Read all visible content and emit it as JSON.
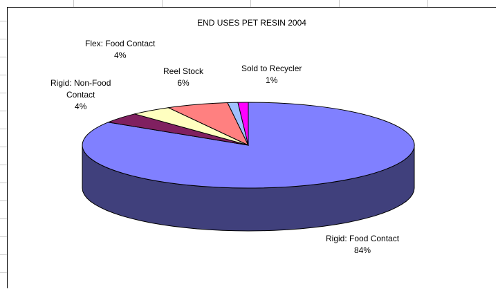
{
  "chart_data": {
    "type": "pie",
    "title": "END USES PET RESIN 2004",
    "slices": [
      {
        "label": "Rigid: Food Contact",
        "value": 84,
        "pct_text": "84%",
        "color": "#8080ff",
        "side_color": "#40407c"
      },
      {
        "label": "Rigid: Non-Food Contact",
        "label_lines": [
          "Rigid: Non-Food",
          "Contact"
        ],
        "value": 4,
        "pct_text": "4%",
        "color": "#802060",
        "side_color": "#401030"
      },
      {
        "label": "Flex:  Food Contact",
        "value": 4,
        "pct_text": "4%",
        "color": "#ffffc0",
        "side_color": "#80805e"
      },
      {
        "label": "Reel Stock",
        "value": 6,
        "pct_text": "6%",
        "color": "#ff8080",
        "side_color": "#804040"
      },
      {
        "label": "Sold to Recycler",
        "value": 1,
        "pct_text": "1%",
        "color": "#a0c0ff",
        "side_color": "#50607f"
      },
      {
        "label": "",
        "value": 1,
        "pct_text": "",
        "color": "#ff00ff",
        "side_color": "#800080"
      }
    ],
    "legend": "none",
    "style": "3d-pie"
  }
}
